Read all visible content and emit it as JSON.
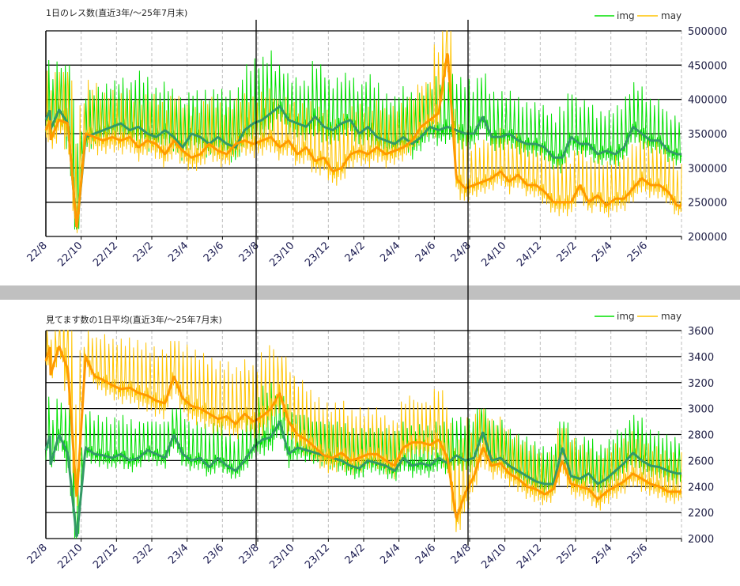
{
  "colors": {
    "img_daily": "#00e000",
    "img_avg": "#339966",
    "may_daily": "#ffc400",
    "may_avg": "#ff9900",
    "separator": "#c0c0c0",
    "marker_lines": "#000000"
  },
  "x_tick_labels": [
    "22/8",
    "22/10",
    "22/12",
    "23/2",
    "23/4",
    "23/6",
    "23/8",
    "23/10",
    "23/12",
    "24/2",
    "24/4",
    "24/6",
    "24/8",
    "24/10",
    "24/12",
    "25/2",
    "25/4",
    "25/6"
  ],
  "marker_months": [
    "23/8",
    "24/8"
  ],
  "chart_data": [
    {
      "type": "line",
      "title": "1日のレス数(直近3年/～25年7月末)",
      "x_range": [
        "22/8",
        "25/7"
      ],
      "ylim": [
        200000,
        500000
      ],
      "yticks": [
        200000,
        250000,
        300000,
        350000,
        400000,
        450000,
        500000
      ],
      "y_axis_position": "right",
      "grid": true,
      "legend": "top-right",
      "series": [
        {
          "name": "img",
          "avg_half_monthly": [
            355000,
            385000,
            365000,
            210000,
            345000,
            350000,
            355000,
            360000,
            365000,
            355000,
            360000,
            350000,
            345000,
            355000,
            345000,
            330000,
            350000,
            345000,
            335000,
            345000,
            335000,
            330000,
            355000,
            365000,
            370000,
            380000,
            390000,
            370000,
            365000,
            360000,
            375000,
            360000,
            355000,
            365000,
            370000,
            350000,
            360000,
            345000,
            340000,
            335000,
            345000,
            335000,
            345000,
            360000,
            355000,
            360000,
            355000,
            350000,
            350000,
            375000,
            345000,
            345000,
            350000,
            340000,
            335000,
            335000,
            330000,
            315000,
            315000,
            345000,
            335000,
            335000,
            320000,
            325000,
            320000,
            330000,
            360000,
            350000,
            340000,
            340000,
            325000,
            320000
          ],
          "daily_max_monthly": [
            460000,
            450000,
            440000,
            445000,
            445000,
            465000,
            440000,
            430000,
            420000,
            440000,
            445000,
            485000,
            490000,
            450000,
            440000,
            475000,
            445000,
            445000,
            455000,
            430000,
            440000,
            435000,
            450000,
            445000,
            440000,
            420000,
            415000,
            405000,
            400000,
            420000,
            405000,
            395000,
            410000,
            425000,
            405000,
            390000
          ],
          "daily_min_monthly": [
            320000,
            210000,
            320000,
            325000,
            320000,
            315000,
            310000,
            305000,
            300000,
            305000,
            300000,
            315000,
            325000,
            330000,
            320000,
            320000,
            315000,
            320000,
            310000,
            305000,
            305000,
            315000,
            310000,
            300000,
            310000,
            300000,
            300000,
            295000,
            290000,
            285000,
            290000,
            285000,
            285000,
            300000,
            295000,
            290000
          ]
        },
        {
          "name": "may",
          "avg_half_monthly": [
            340000,
            370000,
            365000,
            210000,
            350000,
            345000,
            340000,
            345000,
            340000,
            345000,
            330000,
            340000,
            335000,
            320000,
            340000,
            325000,
            315000,
            320000,
            335000,
            325000,
            320000,
            335000,
            340000,
            335000,
            340000,
            345000,
            330000,
            340000,
            320000,
            330000,
            310000,
            315000,
            295000,
            300000,
            320000,
            325000,
            320000,
            330000,
            320000,
            325000,
            330000,
            340000,
            360000,
            370000,
            380000,
            470000,
            285000,
            270000,
            275000,
            280000,
            285000,
            295000,
            280000,
            290000,
            275000,
            275000,
            265000,
            250000,
            250000,
            250000,
            275000,
            250000,
            260000,
            245000,
            255000,
            255000,
            270000,
            285000,
            275000,
            275000,
            265000,
            245000
          ],
          "daily_max_monthly": [
            460000,
            440000,
            445000,
            430000,
            425000,
            420000,
            415000,
            405000,
            410000,
            415000,
            410000,
            425000,
            430000,
            415000,
            410000,
            410000,
            400000,
            410000,
            405000,
            405000,
            410000,
            425000,
            500000,
            400000,
            360000,
            360000,
            355000,
            345000,
            340000,
            340000,
            340000,
            330000,
            335000,
            350000,
            345000,
            330000
          ],
          "daily_min_monthly": [
            310000,
            205000,
            300000,
            305000,
            300000,
            295000,
            285000,
            270000,
            280000,
            285000,
            290000,
            300000,
            300000,
            295000,
            285000,
            270000,
            265000,
            285000,
            280000,
            285000,
            290000,
            300000,
            310000,
            250000,
            250000,
            245000,
            245000,
            240000,
            225000,
            220000,
            225000,
            215000,
            220000,
            230000,
            230000,
            220000
          ]
        }
      ]
    },
    {
      "type": "line",
      "title": "見てます数の1日平均(直近3年/～25年7月末)",
      "x_range": [
        "22/8",
        "25/7"
      ],
      "ylim": [
        2000,
        3600
      ],
      "yticks": [
        2000,
        2200,
        2400,
        2600,
        2800,
        3000,
        3200,
        3400,
        3600
      ],
      "y_axis_position": "right",
      "grid": true,
      "legend": "top-right",
      "series": [
        {
          "name": "img",
          "avg_half_monthly": [
            2560,
            2800,
            2650,
            2000,
            2700,
            2650,
            2640,
            2620,
            2650,
            2600,
            2620,
            2680,
            2650,
            2620,
            2800,
            2650,
            2600,
            2620,
            2550,
            2620,
            2560,
            2520,
            2600,
            2700,
            2760,
            2780,
            2900,
            2650,
            2700,
            2680,
            2660,
            2640,
            2620,
            2600,
            2560,
            2540,
            2600,
            2580,
            2560,
            2520,
            2620,
            2560,
            2580,
            2560,
            2620,
            2580,
            2640,
            2600,
            2620,
            2820,
            2600,
            2620,
            2560,
            2520,
            2480,
            2440,
            2420,
            2420,
            2700,
            2480,
            2460,
            2500,
            2420,
            2460,
            2520,
            2580,
            2660,
            2600,
            2560,
            2550,
            2520,
            2500
          ],
          "daily_max_monthly": [
            3100,
            3000,
            3000,
            2950,
            2950,
            2900,
            2900,
            3000,
            2900,
            2900,
            2850,
            2950,
            3200,
            3100,
            2950,
            2900,
            2900,
            2850,
            2850,
            2850,
            2900,
            2900,
            2900,
            2950,
            3000,
            2950,
            2900,
            2850,
            2800,
            2900,
            2850,
            2800,
            2850,
            2950,
            2850,
            2800
          ],
          "daily_min_monthly": [
            2500,
            2000,
            2450,
            2400,
            2380,
            2400,
            2380,
            2400,
            2380,
            2350,
            2380,
            2400,
            2450,
            2450,
            2400,
            2380,
            2350,
            2300,
            2350,
            2300,
            2350,
            2350,
            2350,
            2380,
            2400,
            2400,
            2380,
            2300,
            2280,
            2300,
            2300,
            2280,
            2300,
            2350,
            2350,
            2300
          ]
        },
        {
          "name": "may",
          "avg_half_monthly": [
            3250,
            3480,
            3300,
            2300,
            3400,
            3250,
            3220,
            3180,
            3150,
            3160,
            3120,
            3100,
            3060,
            3040,
            3250,
            3080,
            3020,
            3000,
            2960,
            2920,
            2940,
            2880,
            2960,
            2900,
            2940,
            3000,
            3120,
            2900,
            2800,
            2760,
            2700,
            2640,
            2620,
            2660,
            2600,
            2620,
            2650,
            2650,
            2600,
            2560,
            2700,
            2740,
            2740,
            2720,
            2760,
            2620,
            2150,
            2350,
            2480,
            2700,
            2560,
            2580,
            2500,
            2460,
            2400,
            2380,
            2340,
            2380,
            2600,
            2420,
            2400,
            2380,
            2300,
            2360,
            2400,
            2440,
            2500,
            2460,
            2420,
            2400,
            2360,
            2360
          ],
          "daily_max_monthly": [
            3600,
            3600,
            3600,
            3600,
            3600,
            3580,
            3540,
            3520,
            3500,
            3450,
            3400,
            3380,
            3500,
            3400,
            3250,
            3150,
            3100,
            3050,
            3050,
            3000,
            3100,
            3050,
            3150,
            3050,
            3000,
            2950,
            2850,
            2800,
            2750,
            2850,
            2800,
            2750,
            2800,
            2850,
            2800,
            2750
          ],
          "daily_min_monthly": [
            3050,
            2250,
            3050,
            2950,
            2900,
            2850,
            2800,
            2750,
            2700,
            2650,
            2620,
            2600,
            2600,
            2550,
            2450,
            2400,
            2350,
            2350,
            2400,
            2380,
            2400,
            2400,
            2350,
            2050,
            2200,
            2300,
            2250,
            2200,
            2200,
            2200,
            2200,
            2150,
            2200,
            2250,
            2250,
            2200
          ]
        }
      ]
    }
  ]
}
